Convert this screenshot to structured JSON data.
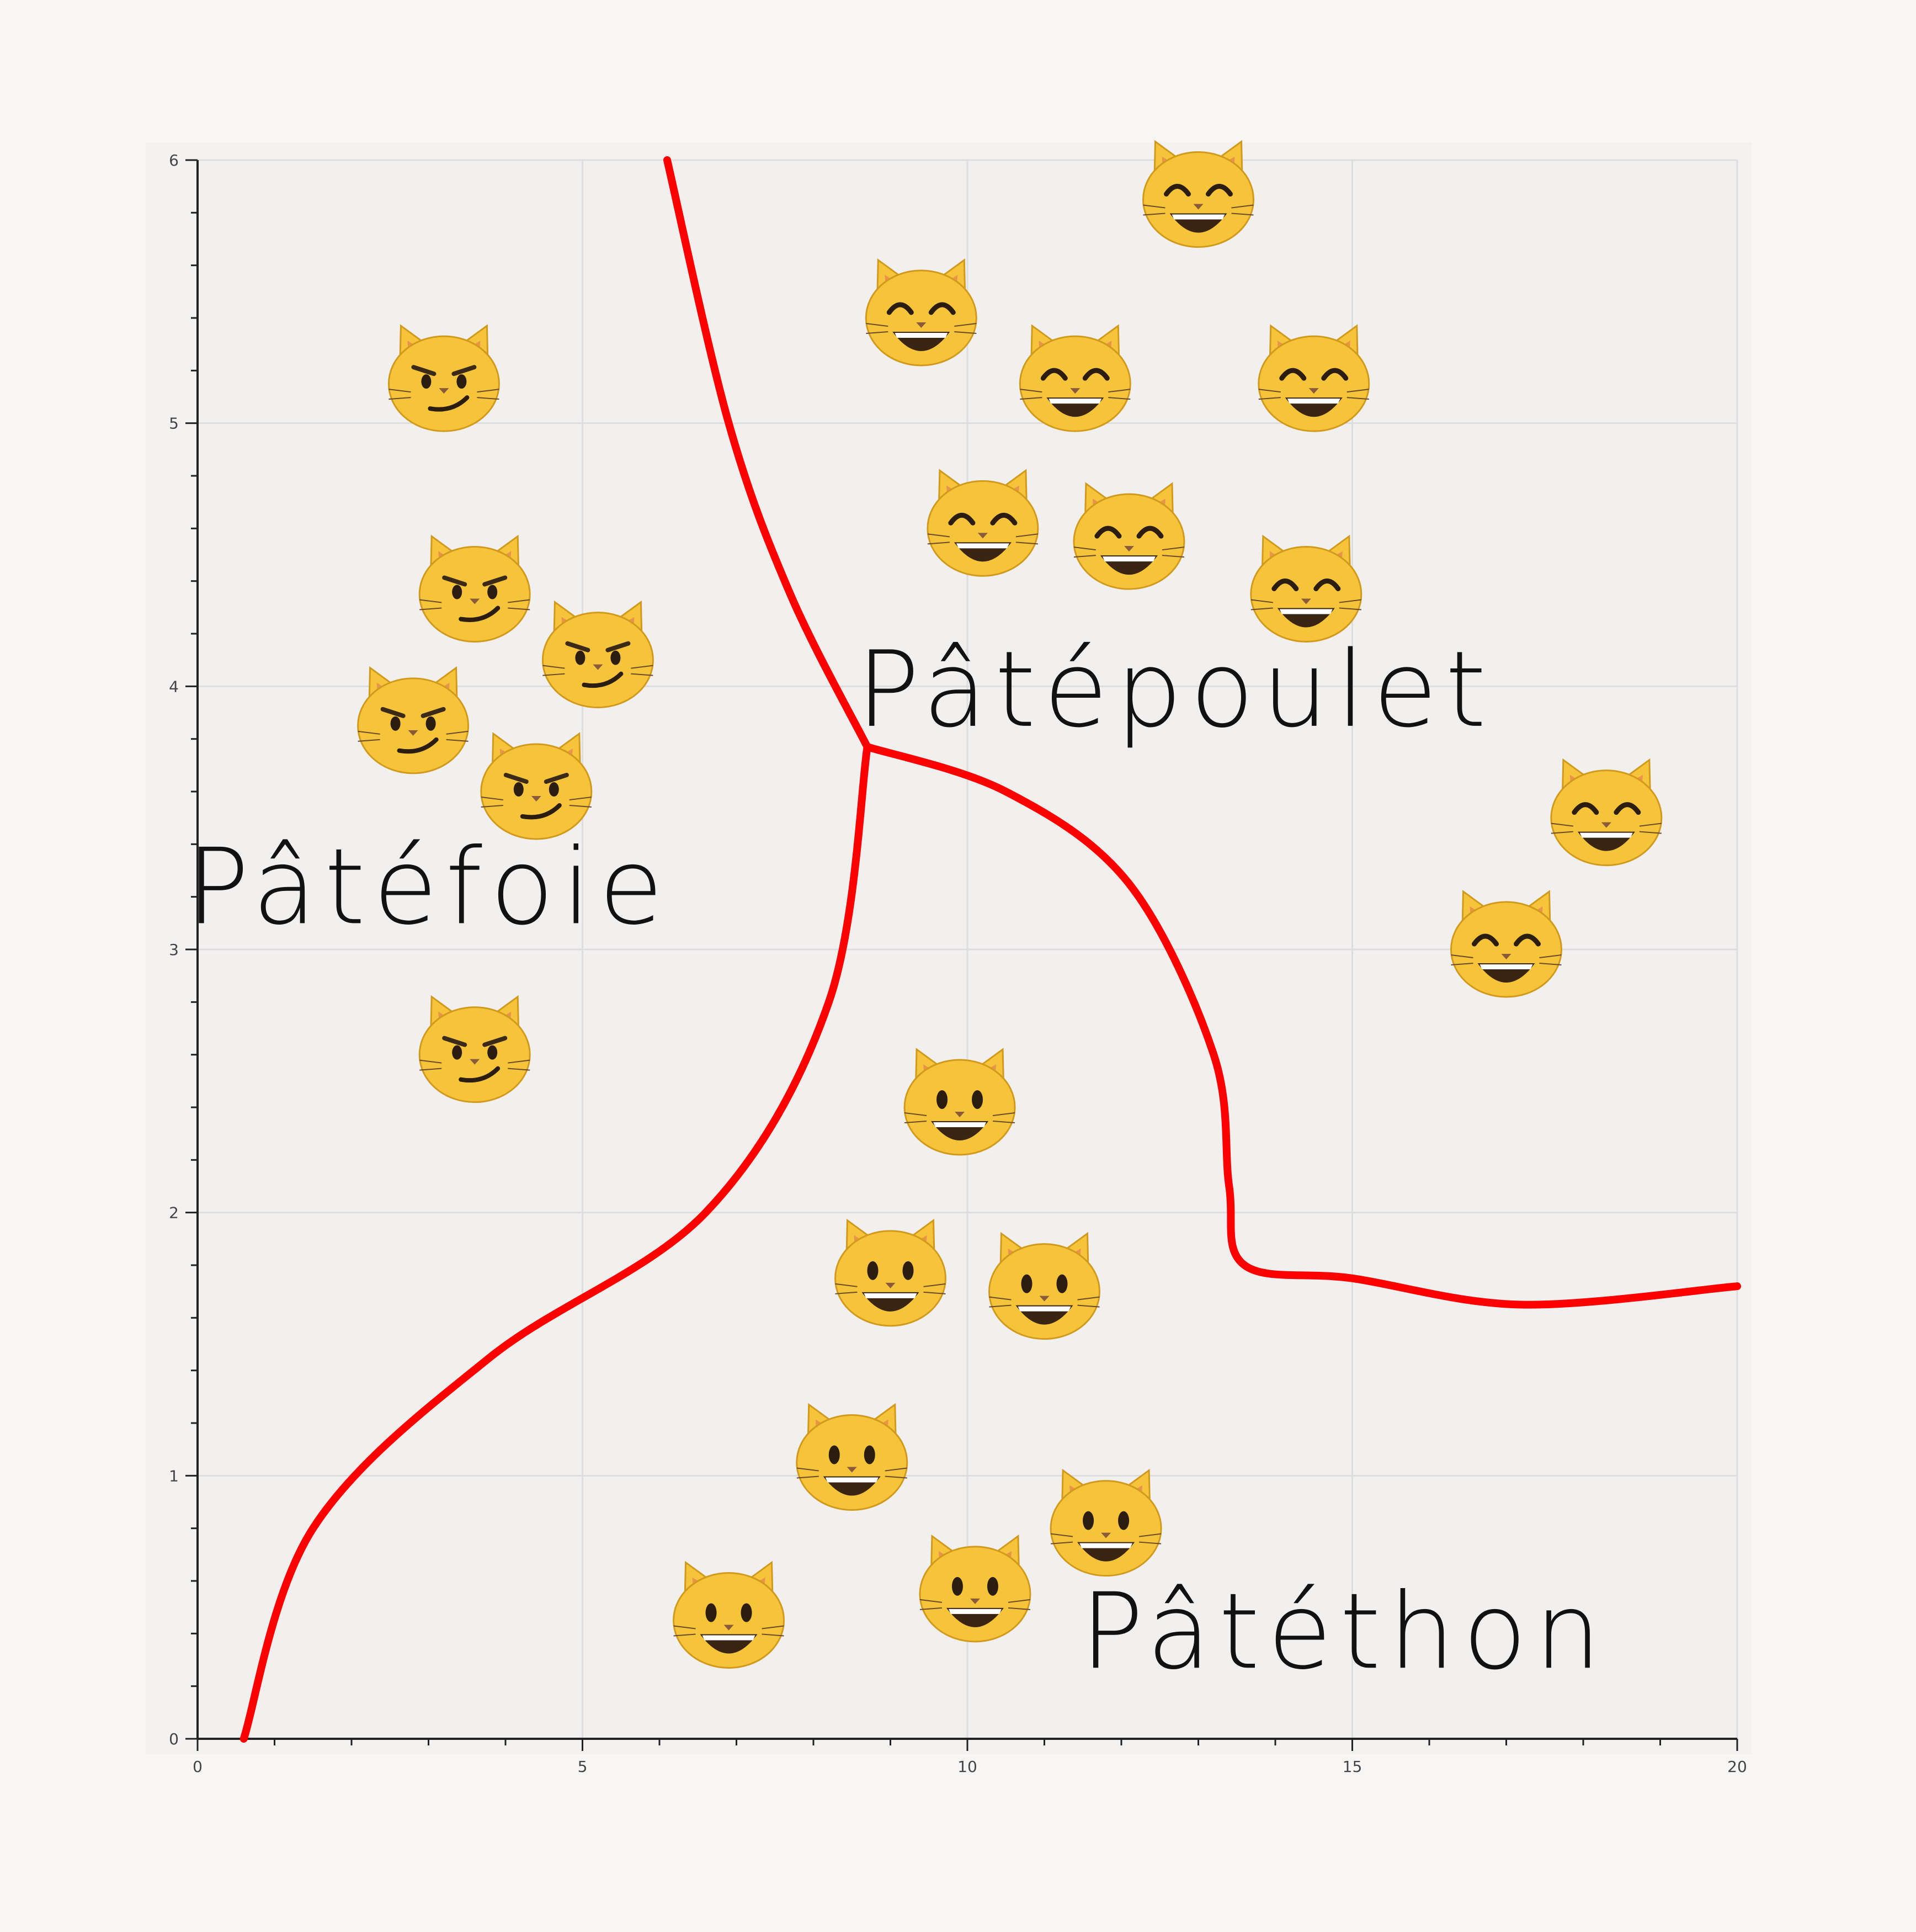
{
  "chart_data": {
    "type": "scatter",
    "title": "",
    "xlabel": "",
    "ylabel": "",
    "xlim": [
      0,
      20
    ],
    "ylim": [
      0,
      6
    ],
    "grid": true,
    "x_ticks": [
      "0",
      "5",
      "10",
      "15",
      "20"
    ],
    "y_ticks": [
      "0",
      "1",
      "2",
      "3",
      "4",
      "5",
      "6"
    ],
    "colors": {
      "boundary": "#ff0000",
      "plot_background": "#f2f0ef",
      "grid": "#dddddd",
      "cat_face": "#f5c43a"
    },
    "regions": [
      {
        "label": "Pâtéfoie",
        "at": [
          3.0,
          3.1
        ],
        "icon": "smirk-cat-icon"
      },
      {
        "label": "Pâtépoulet",
        "at": [
          12.7,
          3.85
        ],
        "icon": "grinning-cat-smiling-eyes-icon"
      },
      {
        "label": "Pâtéthon",
        "at": [
          14.9,
          0.27
        ],
        "icon": "grinning-cat-icon"
      }
    ],
    "series": [
      {
        "icon": "smirk-cat-icon",
        "points": [
          [
            3.2,
            5.15
          ],
          [
            3.6,
            4.35
          ],
          [
            5.2,
            4.1
          ],
          [
            2.8,
            3.85
          ],
          [
            4.4,
            3.6
          ],
          [
            3.6,
            2.6
          ]
        ]
      },
      {
        "icon": "grinning-cat-smiling-eyes-icon",
        "points": [
          [
            13.0,
            5.85
          ],
          [
            9.4,
            5.4
          ],
          [
            11.4,
            5.15
          ],
          [
            14.5,
            5.15
          ],
          [
            10.2,
            4.6
          ],
          [
            12.1,
            4.55
          ],
          [
            14.4,
            4.35
          ],
          [
            18.3,
            3.5
          ],
          [
            17.0,
            3.0
          ]
        ]
      },
      {
        "icon": "grinning-cat-icon",
        "points": [
          [
            9.9,
            2.4
          ],
          [
            9.0,
            1.75
          ],
          [
            11.0,
            1.7
          ],
          [
            8.5,
            1.05
          ],
          [
            11.8,
            0.8
          ],
          [
            10.1,
            0.55
          ],
          [
            6.9,
            0.45
          ]
        ]
      }
    ],
    "boundaries": [
      [
        [
          6.1,
          6.0
        ],
        [
          6.9,
          5.0
        ],
        [
          7.7,
          4.35
        ],
        [
          8.7,
          3.77
        ]
      ],
      [
        [
          8.7,
          3.77
        ],
        [
          10.5,
          3.6
        ],
        [
          12.1,
          3.25
        ],
        [
          13.2,
          2.6
        ],
        [
          13.4,
          2.1
        ],
        [
          13.6,
          1.8
        ],
        [
          15.0,
          1.75
        ],
        [
          17.2,
          1.65
        ],
        [
          20.0,
          1.72
        ]
      ],
      [
        [
          8.7,
          3.77
        ],
        [
          8.2,
          2.8
        ],
        [
          6.6,
          2.0
        ],
        [
          3.8,
          1.45
        ],
        [
          1.5,
          0.8
        ],
        [
          0.6,
          0.0
        ]
      ]
    ]
  }
}
